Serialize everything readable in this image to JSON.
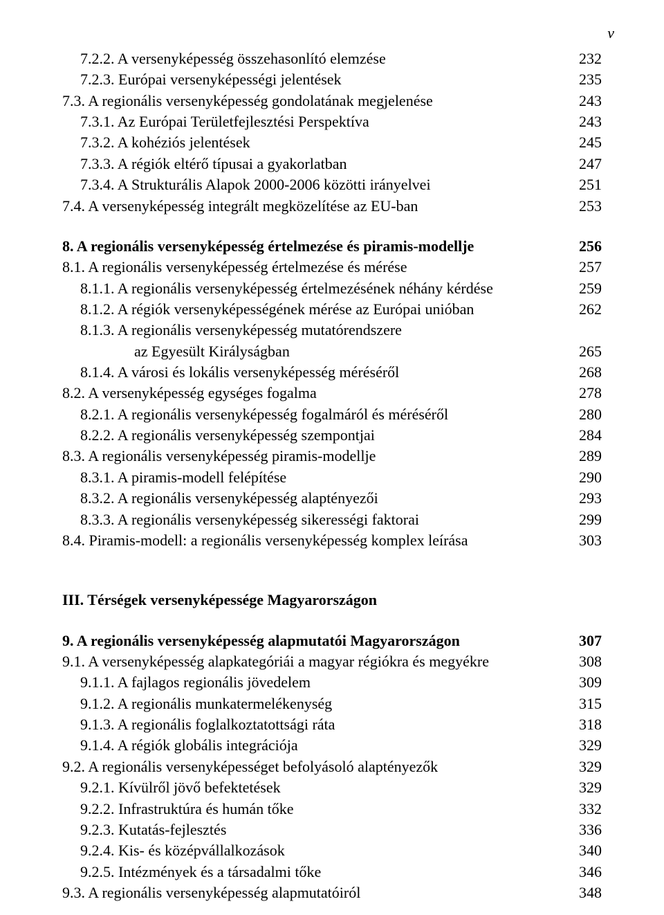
{
  "pageNumber": "v",
  "sections": [
    {
      "type": "toc",
      "gapBefore": false,
      "items": [
        {
          "text": "7.2.2. A versenyképesség összehasonlító elemzése",
          "page": "232",
          "indent": 1,
          "bold": false
        },
        {
          "text": "7.2.3. Európai versenyképességi jelentések",
          "page": "235",
          "indent": 1,
          "bold": false
        },
        {
          "text": "7.3. A regionális versenyképesség gondolatának megjelenése",
          "page": "243",
          "indent": 0,
          "bold": false
        },
        {
          "text": "7.3.1. Az Európai Területfejlesztési Perspektíva",
          "page": "243",
          "indent": 1,
          "bold": false
        },
        {
          "text": "7.3.2. A kohéziós jelentések",
          "page": "245",
          "indent": 1,
          "bold": false
        },
        {
          "text": "7.3.3. A régiók eltérő típusai a gyakorlatban",
          "page": "247",
          "indent": 1,
          "bold": false
        },
        {
          "text": "7.3.4. A Strukturális Alapok 2000-2006 közötti irányelvei",
          "page": "251",
          "indent": 1,
          "bold": false
        },
        {
          "text": "7.4. A versenyképesség integrált megközelítése az EU-ban",
          "page": "253",
          "indent": 0,
          "bold": false
        }
      ]
    },
    {
      "type": "toc",
      "gapBefore": true,
      "items": [
        {
          "text": "8. A regionális versenyképesség értelmezése és piramis-modellje",
          "page": "256",
          "indent": 0,
          "bold": true
        },
        {
          "text": "8.1. A regionális versenyképesség értelmezése és mérése",
          "page": "257",
          "indent": 0,
          "bold": false
        },
        {
          "text": "8.1.1. A regionális versenyképesség értelmezésének néhány kérdése",
          "page": "259",
          "indent": 1,
          "bold": false
        },
        {
          "text": "8.1.2. A régiók versenyképességének mérése az Európai unióban",
          "page": "262",
          "indent": 1,
          "bold": false
        },
        {
          "text": "8.1.3. A regionális versenyképesség mutatórendszere",
          "page": "",
          "indent": 1,
          "bold": false
        },
        {
          "text": "az Egyesült Királyságban",
          "page": "265",
          "indent": 3,
          "bold": false
        },
        {
          "text": "8.1.4. A városi és lokális versenyképesség méréséről",
          "page": "268",
          "indent": 1,
          "bold": false
        },
        {
          "text": "8.2. A versenyképesség egységes fogalma",
          "page": "278",
          "indent": 0,
          "bold": false
        },
        {
          "text": "8.2.1. A regionális versenyképesség fogalmáról és méréséről",
          "page": "280",
          "indent": 1,
          "bold": false
        },
        {
          "text": "8.2.2. A regionális versenyképesség szempontjai",
          "page": "284",
          "indent": 1,
          "bold": false
        },
        {
          "text": "8.3. A regionális versenyképesség piramis-modellje",
          "page": "289",
          "indent": 0,
          "bold": false
        },
        {
          "text": "8.3.1. A piramis-modell felépítése",
          "page": "290",
          "indent": 1,
          "bold": false
        },
        {
          "text": "8.3.2. A regionális versenyképesség alaptényezői",
          "page": "293",
          "indent": 1,
          "bold": false
        },
        {
          "text": "8.3.3. A regionális versenyképesség sikerességi faktorai",
          "page": "299",
          "indent": 1,
          "bold": false
        },
        {
          "text": "8.4. Piramis-modell: a regionális versenyképesség komplex leírása",
          "page": "303",
          "indent": 0,
          "bold": false
        }
      ]
    },
    {
      "type": "heading",
      "gapBefore": "large",
      "text": "III. Térségek versenyképessége Magyarországon"
    },
    {
      "type": "toc",
      "gapBefore": true,
      "items": [
        {
          "text": "9. A regionális versenyképesség alapmutatói Magyarországon",
          "page": "307",
          "indent": 0,
          "bold": true
        },
        {
          "text": "9.1. A versenyképesség alapkategóriái a magyar régiókra és megyékre",
          "page": "308",
          "indent": 0,
          "bold": false
        },
        {
          "text": "9.1.1. A fajlagos regionális jövedelem",
          "page": "309",
          "indent": 1,
          "bold": false
        },
        {
          "text": "9.1.2. A regionális munkatermelékenység",
          "page": "315",
          "indent": 1,
          "bold": false
        },
        {
          "text": "9.1.3. A regionális foglalkoztatottsági ráta",
          "page": "318",
          "indent": 1,
          "bold": false
        },
        {
          "text": "9.1.4. A régiók globális integrációja",
          "page": "329",
          "indent": 1,
          "bold": false
        },
        {
          "text": "9.2. A regionális versenyképességet befolyásoló alaptényezők",
          "page": "329",
          "indent": 0,
          "bold": false
        },
        {
          "text": "9.2.1. Kívülről jövő befektetések",
          "page": "329",
          "indent": 1,
          "bold": false
        },
        {
          "text": "9.2.2. Infrastruktúra és humán tőke",
          "page": "332",
          "indent": 1,
          "bold": false
        },
        {
          "text": "9.2.3. Kutatás-fejlesztés",
          "page": "336",
          "indent": 1,
          "bold": false
        },
        {
          "text": "9.2.4. Kis- és középvállalkozások",
          "page": "340",
          "indent": 1,
          "bold": false
        },
        {
          "text": "9.2.5. Intézmények és a társadalmi tőke",
          "page": "346",
          "indent": 1,
          "bold": false
        },
        {
          "text": "9.3. A regionális versenyképesség alapmutatóiról",
          "page": "348",
          "indent": 0,
          "bold": false
        }
      ]
    }
  ]
}
